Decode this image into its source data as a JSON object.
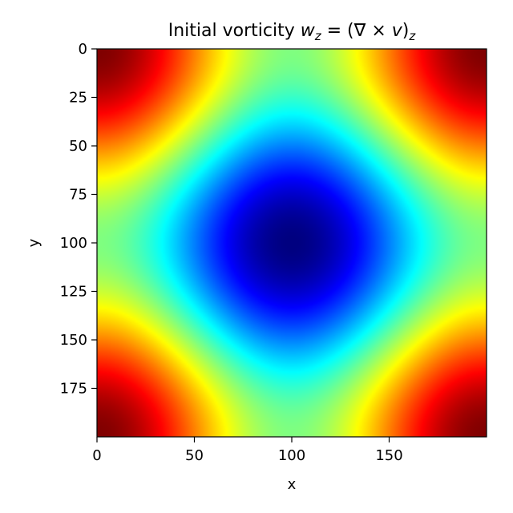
{
  "chart_data": {
    "type": "heatmap",
    "title": "Initial vorticity ",
    "title_math": {
      "w": "w",
      "sub_z": "z",
      "eq": " = (∇ × ",
      "v": "v",
      "close": ")",
      "sub_z2": "z"
    },
    "xlabel": "x",
    "ylabel": "y",
    "xlim": [
      0,
      200
    ],
    "ylim": [
      200,
      0
    ],
    "xticks": [
      0,
      50,
      100,
      150
    ],
    "yticks": [
      0,
      25,
      50,
      75,
      100,
      125,
      150,
      175
    ],
    "grid_size": [
      200,
      200
    ],
    "colormap": "jet",
    "field": "w(x,y) = -cos(2πx/200)·cos(2πy/200) style saddle-free pattern: minimum (dark blue) at center (100,100), maxima (dark red) at the four corners",
    "value_range": [
      -1,
      1
    ],
    "grid": false,
    "colorbar": false
  }
}
